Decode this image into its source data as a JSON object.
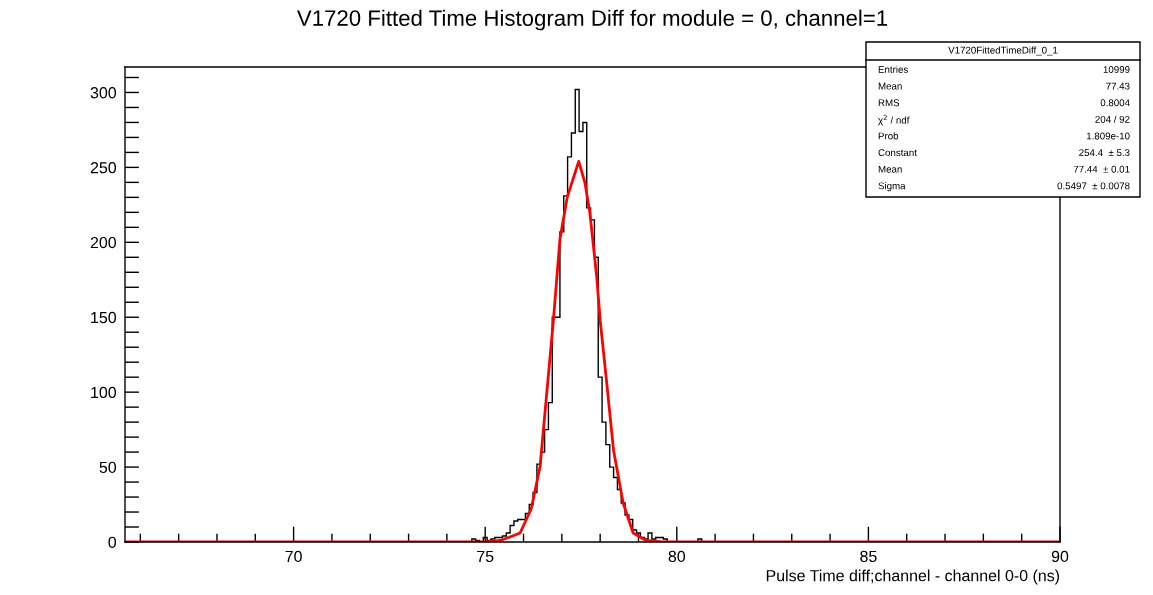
{
  "chart_data": {
    "type": "histogram",
    "title": "V1720 Fitted Time Histogram Diff for module = 0, channel=1",
    "xlabel": "Pulse Time diff;channel - channel 0-0 (ns)",
    "bins": [
      74.65,
      74.75,
      74.85,
      74.95,
      75.05,
      75.15,
      75.25,
      75.35,
      75.45,
      75.55,
      75.65,
      75.75,
      75.85,
      75.95,
      76.05,
      76.15,
      76.25,
      76.35,
      76.45,
      76.55,
      76.65,
      76.75,
      76.85,
      76.95,
      77.05,
      77.15,
      77.25,
      77.35,
      77.45,
      77.55,
      77.65,
      77.75,
      77.85,
      77.95,
      78.05,
      78.15,
      78.25,
      78.35,
      78.45,
      78.55,
      78.65,
      78.75,
      78.85,
      78.95,
      79.05,
      79.15,
      79.25,
      79.35,
      79.45,
      79.55,
      79.65,
      79.75,
      79.85,
      79.95,
      80.05,
      80.15,
      80.25,
      80.35,
      80.45,
      80.55,
      80.65
    ],
    "values": [
      2,
      1,
      0,
      3,
      1,
      2,
      3,
      3,
      4,
      6,
      11,
      14,
      15,
      15,
      19,
      25,
      33,
      52,
      60,
      75,
      93,
      150,
      150,
      207,
      231,
      257,
      273,
      302,
      274,
      280,
      223,
      215,
      190,
      110,
      80,
      65,
      50,
      43,
      35,
      26,
      18,
      15,
      8,
      6,
      3,
      2,
      6,
      2,
      3,
      3,
      2,
      0,
      0,
      0,
      0,
      0,
      0,
      0,
      0,
      2
    ],
    "color": "#000000",
    "series": [
      {
        "type": "line",
        "color": "#ff0000",
        "x": [
          65.6,
          75.0,
          75.4,
          75.91,
          76.2,
          76.43,
          76.78,
          76.95,
          77.14,
          77.44,
          77.6,
          77.73,
          77.91,
          78.0,
          78.18,
          78.35,
          78.6,
          78.86,
          79.2,
          79.6,
          90
        ],
        "values": [
          0,
          0,
          1,
          6,
          22,
          50,
          148,
          202,
          230,
          254,
          240,
          220,
          177,
          148,
          104,
          61,
          26,
          6,
          1,
          0,
          0
        ]
      }
    ],
    "xlim": [
      65.6,
      90
    ],
    "ylim": [
      0,
      317
    ],
    "xticks": [
      {
        "value": 66,
        "label": null
      },
      {
        "value": 67,
        "label": null
      },
      {
        "value": 68,
        "label": null
      },
      {
        "value": 69,
        "label": null
      },
      70,
      {
        "value": 71,
        "label": null
      },
      {
        "value": 72,
        "label": null
      },
      {
        "value": 73,
        "label": null
      },
      {
        "value": 74,
        "label": null
      },
      75,
      {
        "value": 76,
        "label": null
      },
      {
        "value": 77,
        "label": null
      },
      {
        "value": 78,
        "label": null
      },
      {
        "value": 79,
        "label": null
      },
      80,
      {
        "value": 81,
        "label": null
      },
      {
        "value": 82,
        "label": null
      },
      {
        "value": 83,
        "label": null
      },
      {
        "value": 84,
        "label": null
      },
      85,
      {
        "value": 86,
        "label": null
      },
      {
        "value": 87,
        "label": null
      },
      {
        "value": 88,
        "label": null
      },
      {
        "value": 89,
        "label": null
      },
      90
    ],
    "yticks": [
      0,
      {
        "value": 10,
        "label": null
      },
      {
        "value": 20,
        "label": null
      },
      {
        "value": 30,
        "label": null
      },
      {
        "value": 40,
        "label": null
      },
      50,
      {
        "value": 60,
        "label": null
      },
      {
        "value": 70,
        "label": null
      },
      {
        "value": 80,
        "label": null
      },
      {
        "value": 90,
        "label": null
      },
      100,
      {
        "value": 110,
        "label": null
      },
      {
        "value": 120,
        "label": null
      },
      {
        "value": 130,
        "label": null
      },
      {
        "value": 140,
        "label": null
      },
      150,
      {
        "value": 160,
        "label": null
      },
      {
        "value": 170,
        "label": null
      },
      {
        "value": 180,
        "label": null
      },
      {
        "value": 190,
        "label": null
      },
      200,
      {
        "value": 210,
        "label": null
      },
      {
        "value": 220,
        "label": null
      },
      {
        "value": 230,
        "label": null
      },
      {
        "value": 240,
        "label": null
      },
      250,
      {
        "value": 260,
        "label": null
      },
      {
        "value": 270,
        "label": null
      },
      {
        "value": 280,
        "label": null
      },
      {
        "value": 290,
        "label": null
      },
      300,
      {
        "value": 310,
        "label": null
      }
    ],
    "annotations": [
      "V1720FittedTimeDiff_0_1",
      "Entries",
      "10999",
      "Mean",
      "77.43",
      "RMS",
      "0.8004",
      "χ$^{2}$ / ndf",
      "204 / 92",
      "Prob",
      "1.809e-10",
      "Constant",
      "254.4  ± 5.3",
      "Mean",
      "77.44  ± 0.01",
      "Sigma",
      "0.5497  ± 0.0078"
    ],
    "grid": false
  }
}
